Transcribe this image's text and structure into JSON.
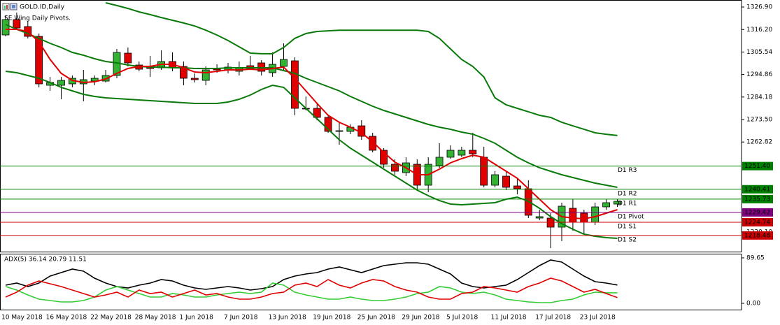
{
  "chart_data": [
    {
      "type": "candlestick",
      "title": "GOLD.ID,Daily",
      "subtitle": "SE Wing Daily Pivots.",
      "categories": [
        "10 May 2018",
        null,
        null,
        null,
        "16 May 2018",
        null,
        null,
        null,
        "22 May 2018",
        null,
        null,
        null,
        "28 May 2018",
        null,
        null,
        null,
        "1 Jun 2018",
        null,
        null,
        null,
        "7 Jun 2018",
        null,
        null,
        null,
        "13 Jun 2018",
        null,
        null,
        null,
        "19 Jun 2018",
        null,
        null,
        null,
        "25 Jun 2018",
        null,
        null,
        null,
        "29 Jun 2018",
        null,
        null,
        null,
        "5 Jul 2018",
        null,
        null,
        null,
        "11 Jul 2018",
        null,
        null,
        null,
        "17 Jul 2018",
        null,
        null,
        null,
        "23 Jul 2018",
        null,
        null,
        null
      ],
      "open": [
        1313.64,
        1320.93,
        1317.62,
        1312.97,
        1289.75,
        1289.75,
        1290.42,
        1290.42,
        1291.74,
        1291.74,
        1294.4,
        1305.01,
        1299.37,
        1298.71,
        1298.05,
        1301.03,
        1298.71,
        1293.07,
        1292.08,
        1297.71,
        1297.05,
        1296.39,
        1299.04,
        1300.37,
        1295.72,
        1298.71,
        1301.36,
        1278.81,
        1278.81,
        1274.5,
        1267.86,
        1267.86,
        1270.51,
        1265.54,
        1258.91,
        1252.27,
        1248.29,
        1252.27,
        1242.32,
        1251.61,
        1255.6,
        1256.59,
        1258.91,
        1255.6,
        1242.32,
        1246.63,
        1241.99,
        1240.66,
        1226.73,
        1226.73,
        1222.42,
        1231.38,
        1229.05,
        1224.74,
        1232.04,
        1233.37
      ],
      "high": [
        1322.92,
        1324.25,
        1320.27,
        1314.3,
        1293.73,
        1293.73,
        1294.4,
        1297.05,
        1294.4,
        1297.05,
        1307.0,
        1307.66,
        1301.03,
        1303.68,
        1306.34,
        1305.34,
        1301.03,
        1295.39,
        1298.71,
        1299.7,
        1300.37,
        1301.03,
        1303.68,
        1301.69,
        1305.34,
        1309.66,
        1303.02,
        1284.45,
        1281.13,
        1275.49,
        1271.84,
        1271.18,
        1273.17,
        1267.2,
        1259.9,
        1254.6,
        1255.6,
        1254.6,
        1255.6,
        1262.22,
        1261.23,
        1260.57,
        1267.2,
        1260.57,
        1248.96,
        1248.96,
        1245.64,
        1244.64,
        1230.71,
        1229.05,
        1234.03,
        1235.69,
        1230.71,
        1234.03,
        1235.69,
        1235.69
      ],
      "low": [
        1312.97,
        1316.29,
        1311.98,
        1288.76,
        1287.1,
        1283.12,
        1288.76,
        1282.12,
        1289.75,
        1291.08,
        1293.07,
        1298.71,
        1296.39,
        1293.73,
        1297.05,
        1296.39,
        1289.75,
        1291.08,
        1289.75,
        1295.72,
        1295.39,
        1294.4,
        1297.05,
        1294.4,
        1293.73,
        1297.05,
        1275.49,
        1277.81,
        1273.17,
        1267.2,
        1261.56,
        1266.53,
        1263.88,
        1257.91,
        1250.61,
        1247.29,
        1246.63,
        1240.0,
        1239.0,
        1250.61,
        1254.93,
        1255.6,
        1255.6,
        1241.33,
        1241.33,
        1240.0,
        1238.01,
        1226.73,
        1225.74,
        1212.47,
        1215.78,
        1220.76,
        1219.1,
        1223.41,
        1230.71,
        1232.04
      ],
      "close": [
        1320.93,
        1316.95,
        1312.97,
        1290.42,
        1291.08,
        1292.08,
        1293.07,
        1292.41,
        1293.07,
        1294.4,
        1305.34,
        1300.37,
        1297.38,
        1297.71,
        1301.03,
        1298.05,
        1293.07,
        1292.41,
        1297.05,
        1297.05,
        1298.38,
        1298.05,
        1297.71,
        1296.39,
        1299.7,
        1302.03,
        1278.81,
        1278.48,
        1274.5,
        1267.86,
        1268.19,
        1269.85,
        1265.54,
        1258.91,
        1252.27,
        1248.96,
        1252.93,
        1242.32,
        1252.27,
        1255.6,
        1258.91,
        1258.91,
        1257.25,
        1242.32,
        1247.29,
        1241.33,
        1240.66,
        1228.06,
        1227.39,
        1222.42,
        1232.37,
        1224.74,
        1224.74,
        1232.04,
        1234.03,
        1234.69
      ],
      "up_color": "#33b233",
      "down_color": "#e00000",
      "series": [
        {
          "color": "#0a7a0a",
          "values": [
            null,
            null,
            null,
            null,
            null,
            null,
            null,
            null,
            null,
            1328.9,
            1327.6,
            1326.2,
            1324.6,
            1323.3,
            1321.9,
            1320.6,
            1319.3,
            1317.9,
            1315.9,
            1313.6,
            1311.0,
            1308.0,
            1305.0,
            1304.7,
            1304.7,
            1307.7,
            1312.0,
            1314.3,
            1315.3,
            1315.6,
            1315.9,
            1315.9,
            1315.9,
            1315.9,
            1315.9,
            1315.9,
            1315.9,
            1315.9,
            1315.3,
            1312.0,
            1307.0,
            1302.0,
            1298.7,
            1293.7,
            1283.8,
            1280.5,
            1278.8,
            1277.2,
            1275.5,
            1274.5,
            1272.2,
            1270.5,
            1268.9,
            1267.2,
            1266.5,
            1265.9
          ]
        },
        {
          "color": "#0a7a0a",
          "values": [
            1318.61,
            1316.29,
            1314.3,
            1311.98,
            1309.66,
            1307.66,
            1305.34,
            1304.02,
            1302.36,
            1301.03,
            1300.37,
            1299.37,
            1298.71,
            1298.38,
            1298.38,
            1298.05,
            1298.05,
            1297.71,
            1297.71,
            1297.71,
            1298.05,
            1298.05,
            1298.05,
            1298.05,
            1298.05,
            1296.72,
            1295.39,
            1293.07,
            1291.08,
            1289.09,
            1287.1,
            1284.45,
            1282.12,
            1279.8,
            1277.81,
            1276.15,
            1274.5,
            1272.84,
            1271.18,
            1269.85,
            1268.86,
            1267.53,
            1266.53,
            1264.55,
            1262.22,
            1258.91,
            1255.6,
            1252.93,
            1250.61,
            1248.96,
            1247.29,
            1245.97,
            1244.64,
            1243.31,
            1242.32,
            1241.33
          ]
        },
        {
          "color": "#0a7a0a",
          "values": [
            1296.39,
            1295.72,
            1294.4,
            1293.07,
            1291.08,
            1288.76,
            1287.1,
            1285.44,
            1284.45,
            1283.78,
            1283.45,
            1283.12,
            1282.79,
            1282.46,
            1282.12,
            1281.79,
            1281.46,
            1281.13,
            1281.13,
            1281.13,
            1281.79,
            1283.12,
            1285.11,
            1287.76,
            1289.75,
            1288.76,
            1283.78,
            1278.81,
            1273.83,
            1268.86,
            1263.88,
            1259.9,
            1256.59,
            1253.27,
            1249.95,
            1246.63,
            1243.31,
            1240.0,
            1237.34,
            1235.02,
            1233.37,
            1233.03,
            1233.37,
            1233.7,
            1234.03,
            1235.69,
            1236.68,
            1234.69,
            1231.38,
            1227.39,
            1224.08,
            1221.43,
            1219.1,
            1218.11,
            1217.44,
            1217.11
          ]
        },
        {
          "color": "#e00000",
          "values": [
            1316.29,
            1316.29,
            1315.29,
            1310.32,
            1302.03,
            1295.39,
            1292.08,
            1291.08,
            1291.41,
            1292.74,
            1295.39,
            1297.71,
            1298.71,
            1298.71,
            1299.7,
            1299.7,
            1298.05,
            1296.06,
            1295.72,
            1296.39,
            1297.05,
            1297.05,
            1297.38,
            1297.05,
            1297.71,
            1298.38,
            1293.07,
            1287.1,
            1281.13,
            1275.49,
            1272.17,
            1269.85,
            1267.2,
            1262.89,
            1257.91,
            1253.27,
            1250.61,
            1247.29,
            1247.29,
            1249.95,
            1252.93,
            1254.93,
            1256.59,
            1255.6,
            1252.27,
            1248.96,
            1245.64,
            1240.66,
            1235.69,
            1230.71,
            1227.39,
            1226.73,
            1226.4,
            1227.39,
            1229.05,
            1230.71
          ]
        }
      ],
      "levels": [
        {
          "label": "D1 R3",
          "value": 1251.4,
          "value_label": "1251.40",
          "color": "#008000"
        },
        {
          "label": "D1 R2",
          "value": 1240.41,
          "value_label": "1240.41",
          "color": "#008000"
        },
        {
          "label": "D1 R1",
          "value": 1235.73,
          "value_label": "1235.73",
          "color": "#008000"
        },
        {
          "label": "D1 Pivot",
          "value": 1229.42,
          "value_label": "1229.42",
          "color": "#800080"
        },
        {
          "label": "D1 S1",
          "value": 1224.74,
          "value_label": "1224.74",
          "color": "#cc0000"
        },
        {
          "label": "D1 S2",
          "value": 1218.48,
          "value_label": "1218.48",
          "color": "#cc0000"
        }
      ],
      "ylim": [
        1210.81,
        1329.56
      ],
      "yticks": [
        {
          "value": 1326.9,
          "label": "1326.90"
        },
        {
          "value": 1316.2,
          "label": "1316.20"
        },
        1305.54,
        1294.86,
        1284.18,
        {
          "value": 1273.5,
          "label": "1273.50"
        },
        1262.82,
        {
          "value": 1220.1,
          "label": "1220.10"
        }
      ]
    },
    {
      "type": "line",
      "title": "ADX(5) 36.14 20.79 11.51",
      "series": [
        {
          "color": "#000000",
          "values": [
            35.9,
            40.0,
            33.1,
            40.0,
            53.8,
            60.7,
            67.6,
            63.4,
            49.6,
            40.0,
            33.1,
            30.3,
            35.9,
            40.0,
            46.9,
            44.1,
            35.9,
            30.3,
            27.6,
            30.3,
            33.1,
            30.3,
            26.2,
            29.0,
            33.1,
            46.9,
            53.8,
            57.9,
            60.7,
            67.6,
            71.7,
            66.2,
            60.7,
            67.6,
            74.5,
            77.2,
            80.0,
            80.0,
            77.2,
            67.6,
            57.9,
            40.0,
            33.1,
            30.3,
            33.1,
            35.9,
            46.9,
            60.7,
            74.5,
            85.5,
            81.4,
            67.6,
            53.8,
            42.7,
            40.0,
            36.14
          ]
        },
        {
          "color": "#33cc33",
          "values": [
            33.1,
            26.2,
            16.5,
            8.3,
            5.5,
            2.8,
            2.8,
            5.5,
            12.4,
            26.2,
            33.1,
            26.2,
            19.3,
            12.4,
            12.4,
            19.3,
            16.5,
            12.4,
            12.4,
            16.5,
            19.3,
            22.1,
            19.3,
            22.1,
            40.0,
            35.9,
            22.1,
            16.5,
            12.4,
            8.3,
            8.3,
            12.4,
            8.3,
            5.5,
            5.5,
            8.3,
            12.4,
            19.3,
            22.1,
            33.1,
            30.3,
            22.1,
            19.3,
            22.1,
            16.5,
            8.3,
            5.5,
            2.8,
            1.4,
            1.4,
            5.5,
            8.3,
            16.5,
            22.1,
            20.8,
            20.79
          ]
        },
        {
          "color": "#e00000",
          "values": [
            12.4,
            22.1,
            35.9,
            44.1,
            38.6,
            33.1,
            26.2,
            19.3,
            12.4,
            16.5,
            22.1,
            12.4,
            26.2,
            19.3,
            22.1,
            12.4,
            19.3,
            26.2,
            16.5,
            19.3,
            12.4,
            8.3,
            8.3,
            12.4,
            19.3,
            22.1,
            35.9,
            40.0,
            33.1,
            46.9,
            35.9,
            30.3,
            40.0,
            46.9,
            44.1,
            33.1,
            26.2,
            22.1,
            12.4,
            8.3,
            8.3,
            19.3,
            22.1,
            33.1,
            30.3,
            26.2,
            22.1,
            33.1,
            40.0,
            49.6,
            44.1,
            33.1,
            22.1,
            27.6,
            19.3,
            11.51
          ]
        }
      ],
      "ylim": [
        -12.4,
        96.5
      ],
      "yticks": [
        89.65,
        {
          "value": 0,
          "label": "0.00"
        }
      ]
    }
  ]
}
